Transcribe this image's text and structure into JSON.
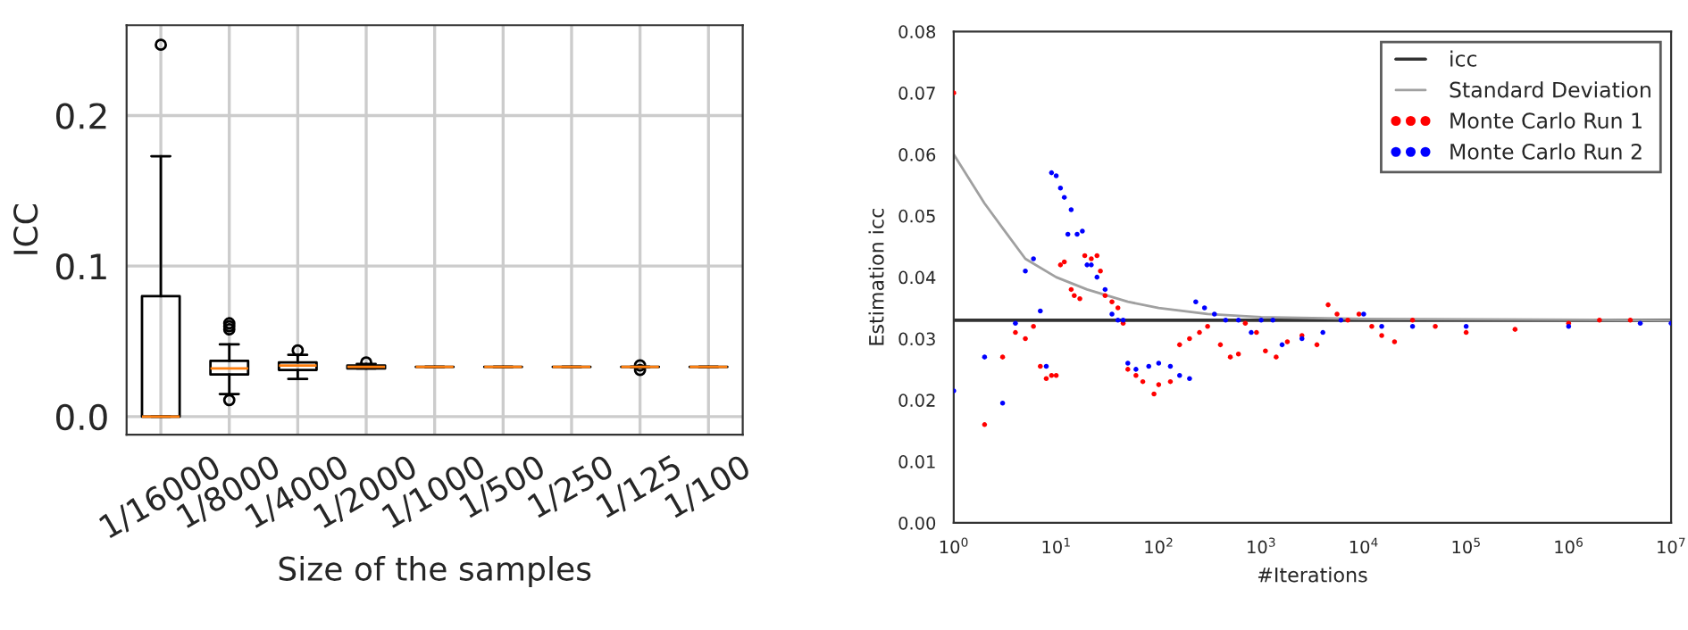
{
  "chart_data": [
    {
      "type": "box",
      "xlabel": "Size of the samples",
      "ylabel": "ICC",
      "categories": [
        "1/16000",
        "1/8000",
        "1/4000",
        "1/2000",
        "1/1000",
        "1/500",
        "1/250",
        "1/125",
        "1/100"
      ],
      "boxes": [
        {
          "low": 0,
          "q1": 0,
          "median": 0,
          "q3": 0.08,
          "high": 0.173,
          "outliers": [
            0.247
          ]
        },
        {
          "low": 0.015,
          "q1": 0.028,
          "median": 0.032,
          "q3": 0.037,
          "high": 0.048,
          "outliers": [
            0.011,
            0.058,
            0.06,
            0.062
          ]
        },
        {
          "low": 0.025,
          "q1": 0.031,
          "median": 0.034,
          "q3": 0.036,
          "high": 0.041,
          "outliers": [
            0.044
          ]
        },
        {
          "low": 0.032,
          "q1": 0.032,
          "median": 0.033,
          "q3": 0.034,
          "high": 0.035,
          "outliers": [
            0.036
          ]
        },
        {
          "low": 0.033,
          "q1": 0.033,
          "median": 0.033,
          "q3": 0.033,
          "high": 0.033
        },
        {
          "low": 0.033,
          "q1": 0.033,
          "median": 0.033,
          "q3": 0.033,
          "high": 0.033
        },
        {
          "low": 0.033,
          "q1": 0.033,
          "median": 0.033,
          "q3": 0.033,
          "high": 0.033
        },
        {
          "low": 0.033,
          "q1": 0.033,
          "median": 0.033,
          "q3": 0.033,
          "high": 0.033,
          "outliers": [
            0.031,
            0.034
          ]
        },
        {
          "low": 0.033,
          "q1": 0.033,
          "median": 0.033,
          "q3": 0.033,
          "high": 0.033
        }
      ],
      "ylim": [
        -0.012,
        0.26
      ],
      "yticks": [
        {
          "value": 0,
          "label": "0.0"
        },
        0.1,
        0.2
      ],
      "grid": true
    },
    {
      "type": "scatter",
      "xlabel": "#Iterations",
      "ylabel": "Estimation icc",
      "log": "x",
      "xlim": [
        1,
        10000000
      ],
      "xticks": [
        {
          "value": 1,
          "label": "10$^{0}$"
        },
        {
          "value": 10,
          "label": "10$^{1}$"
        },
        {
          "value": 100,
          "label": "10$^{2}$"
        },
        {
          "value": 1000,
          "label": "10$^{3}$"
        },
        {
          "value": 10000,
          "label": "10$^{4}$"
        },
        {
          "value": 100000,
          "label": "10$^{5}$"
        },
        {
          "value": 1000000,
          "label": "10$^{6}$"
        },
        {
          "value": 10000000,
          "label": "10$^{7}$"
        }
      ],
      "ylim": [
        0,
        0.08
      ],
      "yticks": [
        {
          "value": 0,
          "label": "0.00"
        },
        0.01,
        0.02,
        0.03,
        0.04,
        0.05,
        0.06,
        0.07,
        0.08
      ],
      "legend": "top right",
      "grid": false,
      "ref_lines": [
        {
          "axis": "y",
          "value": 0.033,
          "label": "icc",
          "color": "#333333"
        }
      ],
      "series": [
        {
          "name": "Standard Deviation",
          "type": "line",
          "color": "#a0a0a0",
          "x": [
            1,
            2,
            3,
            5,
            10,
            20,
            50,
            100,
            300,
            1000,
            10000,
            10000000
          ],
          "values": [
            0.06,
            0.052,
            0.048,
            0.043,
            0.04,
            0.038,
            0.036,
            0.035,
            0.034,
            0.0335,
            0.0332,
            0.033
          ]
        },
        {
          "name": "Monte Carlo Run 1",
          "type": "scatter",
          "color": "#ff0000",
          "x": [
            1,
            2,
            3,
            4,
            5,
            6,
            7,
            8,
            9,
            10,
            11,
            12,
            14,
            15,
            17,
            19,
            22,
            25,
            27,
            30,
            35,
            40,
            45,
            50,
            60,
            70,
            90,
            100,
            130,
            160,
            200,
            250,
            300,
            400,
            500,
            600,
            700,
            900,
            1100,
            1400,
            1800,
            2500,
            3500,
            4500,
            5500,
            7000,
            9000,
            12000,
            15000,
            20000,
            30000,
            50000,
            100000,
            300000,
            1000000,
            2000000,
            4000000
          ],
          "values": [
            0.07,
            0.016,
            0.027,
            0.031,
            0.03,
            0.032,
            0.0255,
            0.0235,
            0.024,
            0.024,
            0.042,
            0.0425,
            0.038,
            0.037,
            0.0365,
            0.0435,
            0.043,
            0.0435,
            0.041,
            0.037,
            0.036,
            0.035,
            0.0325,
            0.025,
            0.024,
            0.023,
            0.021,
            0.0225,
            0.023,
            0.029,
            0.03,
            0.031,
            0.032,
            0.029,
            0.027,
            0.0275,
            0.0325,
            0.031,
            0.028,
            0.027,
            0.0295,
            0.0305,
            0.029,
            0.0355,
            0.034,
            0.033,
            0.034,
            0.032,
            0.0305,
            0.0295,
            0.033,
            0.032,
            0.031,
            0.0315,
            0.0325,
            0.033,
            0.033
          ]
        },
        {
          "name": "Monte Carlo Run 2",
          "type": "scatter",
          "color": "#0000ff",
          "x": [
            1,
            2,
            3,
            4,
            5,
            6,
            7,
            8,
            9,
            10,
            11,
            12,
            13,
            14,
            16,
            18,
            20,
            22,
            25,
            30,
            35,
            40,
            45,
            50,
            60,
            80,
            100,
            130,
            160,
            200,
            230,
            280,
            350,
            450,
            600,
            800,
            1000,
            1300,
            1600,
            2500,
            4000,
            6000,
            10000,
            15000,
            30000,
            100000,
            1000000,
            5000000,
            10000000
          ],
          "values": [
            0.0215,
            0.027,
            0.0195,
            0.0325,
            0.041,
            0.043,
            0.0345,
            0.0255,
            0.057,
            0.0565,
            0.0545,
            0.053,
            0.047,
            0.051,
            0.047,
            0.0475,
            0.042,
            0.042,
            0.04,
            0.038,
            0.034,
            0.033,
            0.033,
            0.026,
            0.025,
            0.0255,
            0.026,
            0.0255,
            0.024,
            0.0235,
            0.036,
            0.035,
            0.034,
            0.033,
            0.033,
            0.031,
            0.033,
            0.033,
            0.029,
            0.03,
            0.031,
            0.033,
            0.034,
            0.032,
            0.032,
            0.032,
            0.032,
            0.0325,
            0.0325
          ]
        }
      ]
    }
  ]
}
